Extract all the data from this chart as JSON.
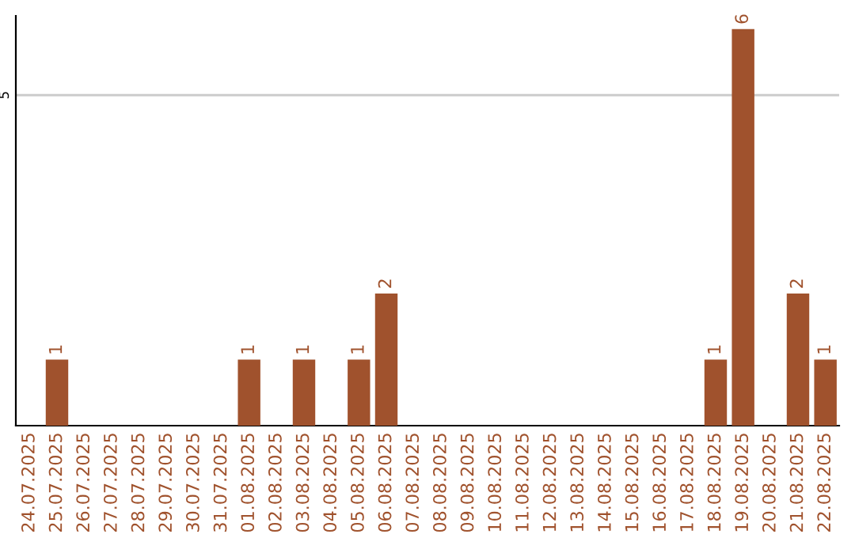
{
  "chart_data": {
    "type": "bar",
    "categories": [
      "24.07.2025",
      "25.07.2025",
      "26.07.2025",
      "27.07.2025",
      "28.07.2025",
      "29.07.2025",
      "30.07.2025",
      "31.07.2025",
      "01.08.2025",
      "02.08.2025",
      "03.08.2025",
      "04.08.2025",
      "05.08.2025",
      "06.08.2025",
      "07.08.2025",
      "08.08.2025",
      "09.08.2025",
      "10.08.2025",
      "11.08.2025",
      "12.08.2025",
      "13.08.2025",
      "14.08.2025",
      "15.08.2025",
      "16.08.2025",
      "17.08.2025",
      "18.08.2025",
      "19.08.2025",
      "20.08.2025",
      "21.08.2025",
      "22.08.2025"
    ],
    "values": [
      0,
      1,
      0,
      0,
      0,
      0,
      0,
      0,
      1,
      0,
      1,
      0,
      1,
      2,
      0,
      0,
      0,
      0,
      0,
      0,
      0,
      0,
      0,
      0,
      0,
      1,
      6,
      0,
      2,
      1
    ],
    "value_labels": [
      null,
      "1",
      null,
      null,
      null,
      null,
      null,
      null,
      "1",
      null,
      "1",
      null,
      "1",
      "2",
      null,
      null,
      null,
      null,
      null,
      null,
      null,
      null,
      null,
      null,
      null,
      "1",
      "6",
      null,
      "2",
      "1"
    ],
    "color": "#a0522d",
    "ylim": [
      0,
      6.2
    ],
    "yticks": [
      5
    ],
    "grid": "y"
  }
}
